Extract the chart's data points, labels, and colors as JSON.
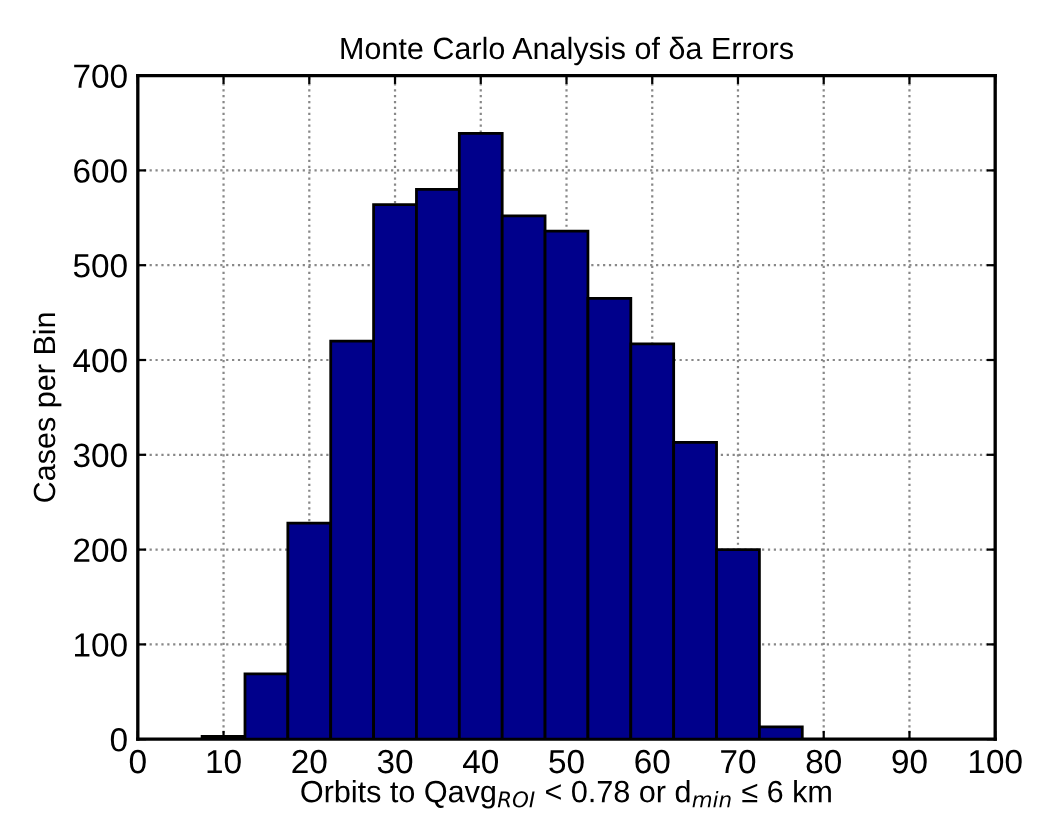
{
  "chart_data": {
    "type": "histogram",
    "title": "Monte Carlo Analysis of δa Errors",
    "xlabel": "Orbits to Qavg$_{ROI}$ < 0.78 or d$_{min}$ ≤ 6 km",
    "ylabel": "Cases per Bin",
    "bins": [
      7.5,
      12.5,
      17.5,
      22.5,
      27.5,
      32.5,
      37.5,
      42.5,
      47.5,
      52.5,
      57.5,
      62.5,
      67.5,
      72.5,
      77.5
    ],
    "values": [
      3,
      69,
      228,
      420,
      564,
      580,
      639,
      552,
      536,
      465,
      417,
      313,
      200,
      13
    ],
    "color": "#00008b",
    "xlim": [
      0,
      100
    ],
    "xticks": [
      0,
      10,
      20,
      30,
      40,
      50,
      60,
      70,
      80,
      90,
      100
    ],
    "ylim": [
      0,
      700
    ],
    "yticks": [
      0,
      100,
      200,
      300,
      400,
      500,
      600,
      700
    ],
    "grid": true,
    "line_style": "dotted"
  }
}
